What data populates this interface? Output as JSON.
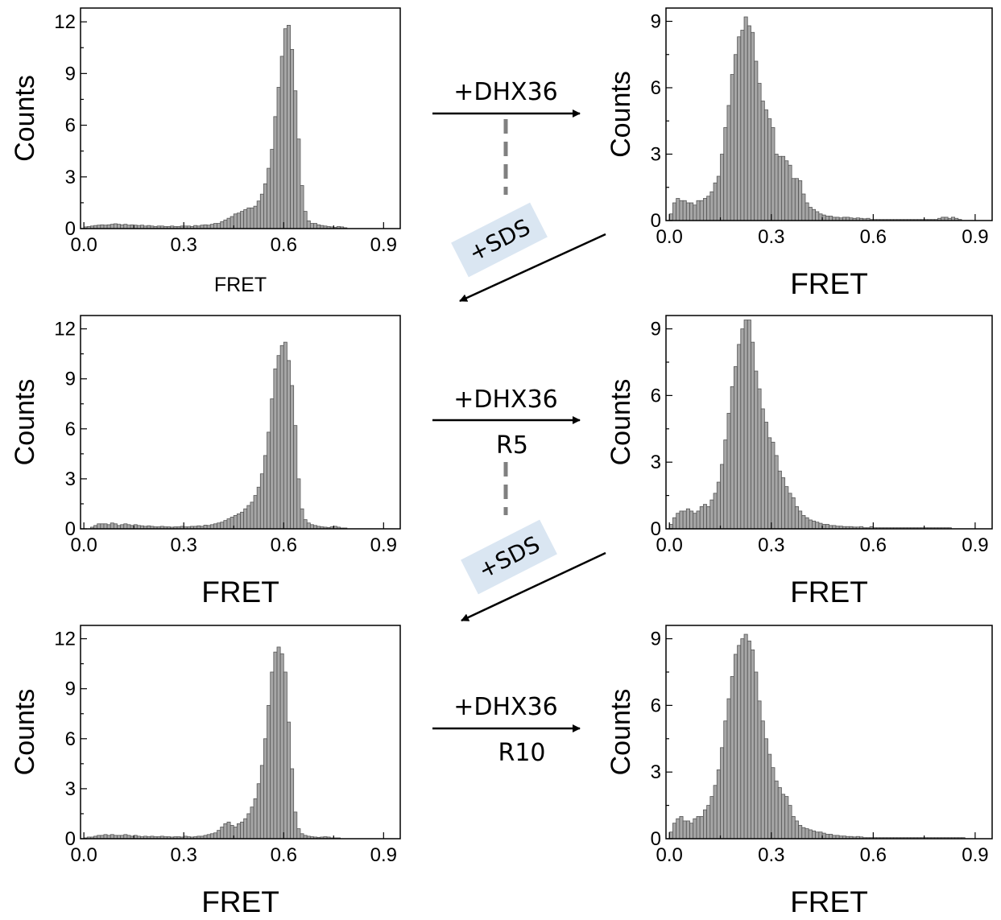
{
  "chart_data": [
    {
      "type": "bar",
      "xlabel": "FRET",
      "ylabel": "Counts",
      "xlim": [
        -0.01,
        0.95
      ],
      "ylim": [
        0,
        12.8
      ],
      "xticks": [
        "0.0",
        "0.3",
        "0.6",
        "0.9"
      ],
      "yticks": [
        "0",
        "3",
        "6",
        "9",
        "12"
      ],
      "bin_start": 0.0,
      "bin_width": 0.01,
      "values": [
        0.1,
        0.12,
        0.15,
        0.18,
        0.2,
        0.22,
        0.2,
        0.22,
        0.25,
        0.28,
        0.25,
        0.22,
        0.25,
        0.2,
        0.22,
        0.2,
        0.18,
        0.2,
        0.15,
        0.18,
        0.15,
        0.12,
        0.15,
        0.15,
        0.12,
        0.12,
        0.15,
        0.12,
        0.12,
        0.15,
        0.15,
        0.15,
        0.12,
        0.18,
        0.15,
        0.2,
        0.22,
        0.2,
        0.25,
        0.3,
        0.3,
        0.4,
        0.5,
        0.6,
        0.7,
        0.85,
        0.9,
        1.0,
        1.1,
        1.2,
        1.2,
        1.3,
        1.6,
        2.0,
        2.6,
        3.5,
        4.6,
        6.5,
        8.2,
        10.0,
        11.6,
        11.8,
        10.4,
        8.0,
        5.2,
        2.5,
        1.0,
        0.45,
        0.3,
        0.3,
        0.22,
        0.18,
        0.15,
        0.12,
        0.1,
        0.08,
        0.12,
        0.1,
        0.05,
        0.0,
        0.0
      ]
    },
    {
      "type": "bar",
      "xlabel": "FRET",
      "ylabel": "Counts",
      "xlim": [
        -0.01,
        0.95
      ],
      "ylim": [
        0,
        9.6
      ],
      "xticks": [
        "0.0",
        "0.3",
        "0.6",
        "0.9"
      ],
      "yticks": [
        "0",
        "3",
        "6",
        "9"
      ],
      "bin_start": 0.0,
      "bin_width": 0.01,
      "values": [
        0.3,
        0.8,
        1.0,
        0.9,
        0.9,
        0.8,
        0.8,
        0.7,
        0.9,
        0.9,
        1.0,
        1.1,
        1.3,
        1.7,
        2.0,
        3.0,
        4.2,
        5.2,
        6.6,
        7.5,
        8.3,
        8.6,
        9.2,
        8.8,
        8.5,
        7.2,
        6.2,
        5.4,
        5.0,
        4.6,
        4.2,
        3.0,
        2.9,
        2.9,
        2.7,
        2.5,
        1.9,
        1.9,
        1.8,
        1.2,
        0.8,
        0.6,
        0.5,
        0.4,
        0.3,
        0.25,
        0.2,
        0.2,
        0.15,
        0.15,
        0.12,
        0.15,
        0.15,
        0.12,
        0.1,
        0.12,
        0.1,
        0.08,
        0.1,
        0.05,
        0.05,
        0.05,
        0.05,
        0.05,
        0.05,
        0.05,
        0.05,
        0.05,
        0.05,
        0.05,
        0.05,
        0.05,
        0.05,
        0.05,
        0.05,
        0.05,
        0.05,
        0.05,
        0.05,
        0.1,
        0.15,
        0.15,
        0.1,
        0.15,
        0.1,
        0.05,
        0.0,
        0.0
      ]
    },
    {
      "type": "bar",
      "xlabel": "FRET",
      "ylabel": "Counts",
      "xlim": [
        -0.01,
        0.95
      ],
      "ylim": [
        0,
        12.8
      ],
      "xticks": [
        "0.0",
        "0.3",
        "0.6",
        "0.9"
      ],
      "yticks": [
        "0",
        "3",
        "6",
        "9",
        "12"
      ],
      "bin_start": 0.0,
      "bin_width": 0.01,
      "values": [
        0.0,
        0.0,
        0.1,
        0.2,
        0.3,
        0.3,
        0.3,
        0.25,
        0.35,
        0.3,
        0.2,
        0.25,
        0.3,
        0.25,
        0.2,
        0.25,
        0.2,
        0.18,
        0.15,
        0.18,
        0.15,
        0.12,
        0.12,
        0.15,
        0.12,
        0.12,
        0.1,
        0.12,
        0.12,
        0.15,
        0.12,
        0.12,
        0.15,
        0.15,
        0.18,
        0.15,
        0.22,
        0.2,
        0.25,
        0.3,
        0.35,
        0.4,
        0.5,
        0.6,
        0.7,
        0.8,
        0.9,
        1.0,
        1.2,
        1.4,
        1.6,
        2.0,
        2.5,
        3.3,
        4.4,
        5.8,
        7.8,
        9.6,
        10.4,
        11.0,
        11.2,
        10.1,
        8.6,
        6.2,
        3.0,
        1.2,
        0.55,
        0.35,
        0.25,
        0.2,
        0.15,
        0.12,
        0.1,
        0.08,
        0.12,
        0.15,
        0.1,
        0.05,
        0.05,
        0.0
      ]
    },
    {
      "type": "bar",
      "xlabel": "FRET",
      "ylabel": "Counts",
      "xlim": [
        -0.01,
        0.95
      ],
      "ylim": [
        0,
        9.6
      ],
      "xticks": [
        "0.0",
        "0.3",
        "0.6",
        "0.9"
      ],
      "yticks": [
        "0",
        "3",
        "6",
        "9"
      ],
      "bin_start": 0.0,
      "bin_width": 0.01,
      "values": [
        0.2,
        0.5,
        0.7,
        0.8,
        0.8,
        0.9,
        0.8,
        0.7,
        0.8,
        1.0,
        1.1,
        1.0,
        1.3,
        1.6,
        2.1,
        2.9,
        4.0,
        5.2,
        6.4,
        7.3,
        8.3,
        9.0,
        9.4,
        9.4,
        8.4,
        7.1,
        6.3,
        5.4,
        4.8,
        4.1,
        3.9,
        3.3,
        2.6,
        2.3,
        1.9,
        1.6,
        1.4,
        1.0,
        0.8,
        0.6,
        0.5,
        0.4,
        0.35,
        0.3,
        0.25,
        0.2,
        0.2,
        0.15,
        0.15,
        0.12,
        0.12,
        0.1,
        0.1,
        0.1,
        0.08,
        0.08,
        0.1,
        0.05,
        0.05,
        0.1,
        0.05,
        0.05,
        0.05,
        0.05,
        0.05,
        0.05,
        0.05,
        0.05,
        0.05,
        0.05,
        0.05,
        0.05,
        0.05,
        0.05,
        0.05,
        0.05,
        0.05,
        0.05,
        0.05,
        0.05,
        0.05,
        0.05,
        0.05,
        0.0,
        0.0
      ]
    },
    {
      "type": "bar",
      "xlabel": "FRET",
      "ylabel": "Counts",
      "xlim": [
        -0.01,
        0.95
      ],
      "ylim": [
        0,
        12.8
      ],
      "xticks": [
        "0.0",
        "0.3",
        "0.6",
        "0.9"
      ],
      "yticks": [
        "0",
        "3",
        "6",
        "9",
        "12"
      ],
      "bin_start": 0.0,
      "bin_width": 0.01,
      "values": [
        0.05,
        0.1,
        0.1,
        0.15,
        0.2,
        0.2,
        0.25,
        0.2,
        0.25,
        0.2,
        0.2,
        0.2,
        0.25,
        0.2,
        0.15,
        0.2,
        0.15,
        0.12,
        0.15,
        0.12,
        0.15,
        0.12,
        0.12,
        0.15,
        0.12,
        0.12,
        0.1,
        0.12,
        0.12,
        0.1,
        0.15,
        0.12,
        0.1,
        0.12,
        0.15,
        0.15,
        0.2,
        0.25,
        0.3,
        0.35,
        0.5,
        0.7,
        0.9,
        1.0,
        0.8,
        0.7,
        0.9,
        1.0,
        1.2,
        1.5,
        1.9,
        2.4,
        3.3,
        4.4,
        6.0,
        8.0,
        10.0,
        11.2,
        11.5,
        11.1,
        10.0,
        7.0,
        4.2,
        1.6,
        0.6,
        0.3,
        0.2,
        0.15,
        0.12,
        0.1,
        0.08,
        0.1,
        0.12,
        0.1,
        0.05,
        0.05,
        0.05,
        0.0,
        0.0,
        0.0
      ]
    },
    {
      "type": "bar",
      "xlabel": "FRET",
      "ylabel": "Counts",
      "xlim": [
        -0.01,
        0.95
      ],
      "ylim": [
        0,
        9.6
      ],
      "xticks": [
        "0.0",
        "0.3",
        "0.6",
        "0.9"
      ],
      "yticks": [
        "0",
        "3",
        "6",
        "9"
      ],
      "bin_start": 0.0,
      "bin_width": 0.01,
      "values": [
        0.3,
        0.7,
        0.9,
        1.0,
        0.8,
        0.8,
        0.7,
        0.9,
        1.0,
        1.0,
        1.3,
        1.5,
        1.9,
        2.4,
        3.1,
        4.1,
        5.3,
        6.3,
        7.3,
        8.3,
        8.7,
        9.0,
        9.2,
        8.9,
        8.5,
        7.5,
        6.2,
        5.3,
        4.5,
        3.8,
        3.2,
        2.6,
        2.3,
        2.0,
        1.9,
        1.5,
        1.0,
        0.8,
        0.6,
        0.5,
        0.45,
        0.4,
        0.35,
        0.3,
        0.3,
        0.25,
        0.2,
        0.2,
        0.15,
        0.15,
        0.12,
        0.12,
        0.1,
        0.1,
        0.08,
        0.1,
        0.08,
        0.05,
        0.05,
        0.05,
        0.05,
        0.05,
        0.05,
        0.05,
        0.05,
        0.05,
        0.05,
        0.05,
        0.05,
        0.05,
        0.05,
        0.05,
        0.05,
        0.05,
        0.05,
        0.05,
        0.05,
        0.05,
        0.05,
        0.05,
        0.05,
        0.05,
        0.05,
        0.05,
        0.05,
        0.05,
        0.05,
        0.0,
        0.0
      ]
    }
  ],
  "annotations": [
    {
      "text": "+DHX36"
    },
    {
      "text": "+SDS"
    },
    {
      "text": "+DHX36"
    },
    {
      "text": "R5"
    },
    {
      "text": "+SDS"
    },
    {
      "text": "+DHX36"
    },
    {
      "text": "R10"
    }
  ],
  "colors": {
    "bar_fill": "#a6a6a6",
    "bar_stroke": "#555555",
    "arrow": "#000000",
    "dashed_connector": "#808080",
    "sds_box": "#dae6f2"
  }
}
